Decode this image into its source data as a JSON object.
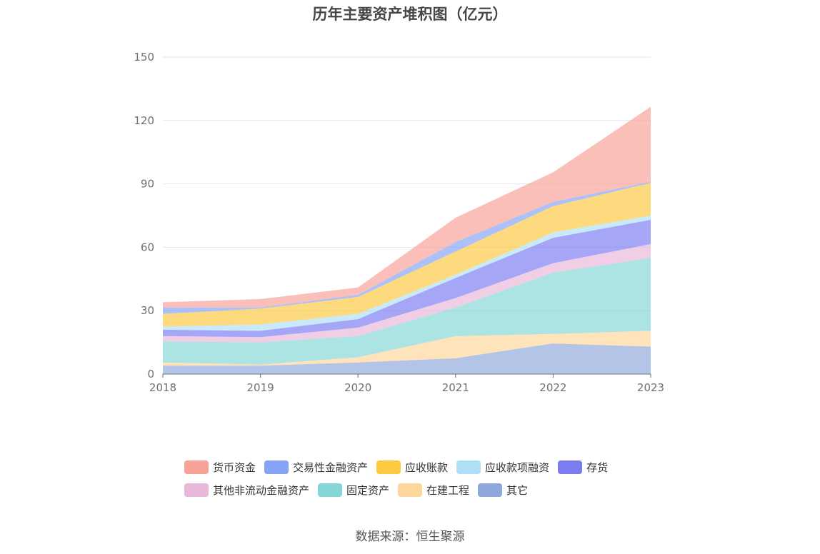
{
  "chart_data": {
    "type": "area",
    "stacked": true,
    "title": "历年主要资产堆积图（亿元）",
    "categories": [
      "2018",
      "2019",
      "2020",
      "2021",
      "2022",
      "2023"
    ],
    "y_ticks": [
      "0",
      "30",
      "60",
      "90",
      "120",
      "150"
    ],
    "ylim": [
      0,
      150
    ],
    "grid": true,
    "legend_position": "bottom",
    "series": [
      {
        "name": "其它",
        "color": "#8fa8dc",
        "values": [
          4.0,
          4.0,
          5.5,
          7.5,
          14.5,
          13.0
        ]
      },
      {
        "name": "在建工程",
        "color": "#fdd69b",
        "values": [
          1.5,
          0.5,
          2.5,
          10.5,
          4.5,
          7.5
        ]
      },
      {
        "name": "固定资产",
        "color": "#85d6d6",
        "values": [
          10.0,
          10.5,
          10.0,
          13.5,
          29.0,
          34.5
        ]
      },
      {
        "name": "其他非流动金融资产",
        "color": "#e9b7da",
        "values": [
          2.5,
          2.5,
          4.0,
          4.5,
          4.5,
          6.5
        ]
      },
      {
        "name": "存货",
        "color": "#7b7cf0",
        "values": [
          3.0,
          3.0,
          4.0,
          9.5,
          12.0,
          11.5
        ]
      },
      {
        "name": "应收款项融资",
        "color": "#aee0f7",
        "values": [
          1.5,
          3.0,
          2.5,
          1.5,
          2.5,
          2.0
        ]
      },
      {
        "name": "应收账款",
        "color": "#fcc940",
        "values": [
          6.0,
          7.5,
          8.0,
          11.0,
          12.5,
          15.5
        ]
      },
      {
        "name": "交易性金融资产",
        "color": "#85a4f8",
        "values": [
          3.0,
          0.5,
          1.0,
          4.5,
          2.0,
          0.5
        ]
      },
      {
        "name": "货币资金",
        "color": "#f8a196",
        "values": [
          2.5,
          4.0,
          3.5,
          11.5,
          14.0,
          35.5
        ]
      }
    ]
  },
  "legend": {
    "rows": [
      [
        {
          "label": "货币资金",
          "color": "#f8a196"
        },
        {
          "label": "交易性金融资产",
          "color": "#85a4f8"
        },
        {
          "label": "应收账款",
          "color": "#fcc940"
        },
        {
          "label": "应收款项融资",
          "color": "#aee0f7"
        },
        {
          "label": "存货",
          "color": "#7b7cf0"
        }
      ],
      [
        {
          "label": "其他非流动金融资产",
          "color": "#e9b7da"
        },
        {
          "label": "固定资产",
          "color": "#85d6d6"
        },
        {
          "label": "在建工程",
          "color": "#fdd69b"
        },
        {
          "label": "其它",
          "color": "#8fa8dc"
        }
      ]
    ]
  },
  "footer": {
    "source": "数据来源：恒生聚源"
  }
}
